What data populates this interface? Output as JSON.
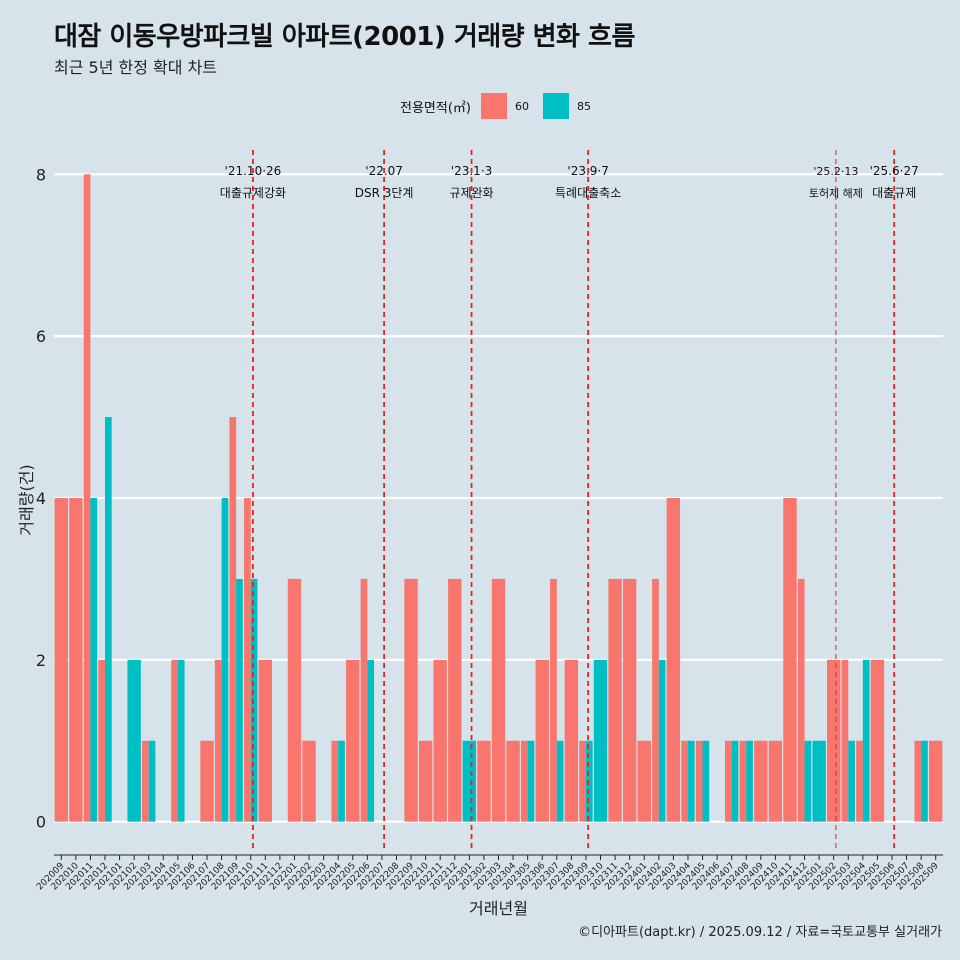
{
  "title": "대잠 이동우방파크빌 아파트(2001) 거래량 변화 흐름",
  "subtitle": "최근 5년 한정 확대 차트",
  "caption": "©디아파트(dapt.kr) / 2025.09.12 / 자료=국토교통부 실거래가",
  "legend": {
    "title": "전용면적(㎡)",
    "items": [
      {
        "label": "60",
        "color": "#f8766d"
      },
      {
        "label": "85",
        "color": "#00bfc4"
      }
    ]
  },
  "chart_data": {
    "type": "bar",
    "xlabel": "거래년월",
    "ylabel": "거래량(건)",
    "ylim": [
      -0.35,
      8.3
    ],
    "yticks": [
      0,
      2,
      4,
      6,
      8
    ],
    "grid": true,
    "legend_position": "top",
    "categories": [
      "202009",
      "202010",
      "202011",
      "202012",
      "202101",
      "202102",
      "202103",
      "202104",
      "202105",
      "202106",
      "202107",
      "202108",
      "202109",
      "202110",
      "202111",
      "202112",
      "202201",
      "202202",
      "202203",
      "202204",
      "202205",
      "202206",
      "202207",
      "202208",
      "202209",
      "202210",
      "202211",
      "202212",
      "202301",
      "202302",
      "202303",
      "202304",
      "202305",
      "202306",
      "202307",
      "202308",
      "202309",
      "202310",
      "202311",
      "202312",
      "202401",
      "202402",
      "202403",
      "202404",
      "202405",
      "202406",
      "202407",
      "202408",
      "202409",
      "202410",
      "202411",
      "202412",
      "202501",
      "202502",
      "202503",
      "202504",
      "202505",
      "202506",
      "202507",
      "202508",
      "202509"
    ],
    "series": [
      {
        "name": "60",
        "color": "#f8766d",
        "values": [
          4,
          4,
          8,
          2,
          0,
          0,
          1,
          0,
          2,
          0,
          1,
          2,
          5,
          4,
          2,
          0,
          3,
          1,
          0,
          1,
          2,
          3,
          0,
          0,
          3,
          1,
          2,
          3,
          0,
          1,
          3,
          1,
          1,
          2,
          3,
          2,
          1,
          0,
          3,
          3,
          1,
          3,
          4,
          1,
          1,
          0,
          1,
          1,
          1,
          1,
          4,
          3,
          0,
          2,
          2,
          1,
          2,
          0,
          0,
          1,
          1
        ]
      },
      {
        "name": "85",
        "color": "#00bfc4",
        "values": [
          0,
          0,
          4,
          5,
          0,
          2,
          1,
          0,
          2,
          0,
          0,
          4,
          3,
          3,
          0,
          0,
          0,
          0,
          0,
          1,
          0,
          2,
          0,
          0,
          0,
          0,
          0,
          0,
          1,
          0,
          0,
          0,
          1,
          0,
          1,
          0,
          1,
          2,
          0,
          0,
          0,
          2,
          0,
          1,
          1,
          0,
          1,
          1,
          0,
          0,
          0,
          1,
          1,
          0,
          1,
          2,
          0,
          0,
          0,
          1,
          0
        ]
      }
    ],
    "xtick_labels": [
      "202009",
      "202010",
      "202011",
      "202012",
      "202101",
      "202102",
      "202103",
      "202104",
      "202105",
      "202106",
      "202107",
      "202108",
      "202109",
      "202110",
      "202111",
      "202112",
      "202201",
      "202202",
      "202203",
      "202204",
      "202205",
      "202206",
      "202207",
      "202208",
      "202209",
      "202210",
      "202211",
      "202212",
      "202301",
      "202302",
      "202303",
      "202304",
      "202305",
      "202306",
      "202307",
      "202308",
      "202309",
      "202310",
      "202311",
      "202312",
      "202401",
      "202402",
      "202403",
      "202404",
      "202405",
      "202406",
      "202407",
      "202408",
      "202409",
      "202410",
      "202411",
      "202412",
      "202501",
      "202502",
      "202503",
      "202504",
      "202505",
      "202506",
      "202507",
      "202508",
      "202509"
    ],
    "annotations": [
      {
        "month": "202110",
        "date": "'21.10·26",
        "label": "대출규제강화",
        "style": "dashed"
      },
      {
        "month": "202207",
        "date": "'22.07",
        "label": "DSR 3단계",
        "style": "dashed"
      },
      {
        "month": "202301",
        "date": "'23.1·3",
        "label": "규제완화",
        "style": "dashed"
      },
      {
        "month": "202309",
        "date": "'23.9·7",
        "label": "특례대출축소",
        "style": "dashed"
      },
      {
        "month": "202502",
        "date": "'25.2·13",
        "label": "토허제 해제",
        "style": "thin"
      },
      {
        "month": "202506",
        "date": "'25.6·27",
        "label": "대출규제",
        "style": "dashed"
      }
    ]
  }
}
